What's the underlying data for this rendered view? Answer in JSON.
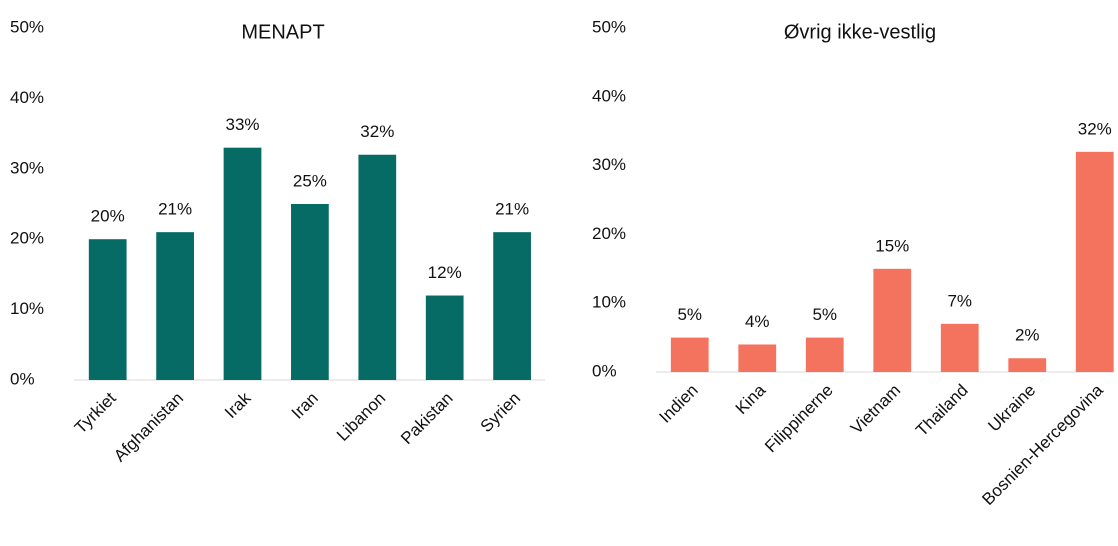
{
  "chart_data": [
    {
      "type": "bar",
      "title": "MENAPT",
      "categories": [
        "Tyrkiet",
        "Afghanistan",
        "Irak",
        "Iran",
        "Libanon",
        "Pakistan",
        "Syrien"
      ],
      "values": [
        20,
        21,
        33,
        25,
        32,
        12,
        21
      ],
      "value_labels": [
        "20%",
        "21%",
        "33%",
        "25%",
        "32%",
        "12%",
        "21%"
      ],
      "color": "#076b65",
      "ylim": [
        0,
        50
      ],
      "yticks": [
        {
          "value": 0,
          "label": "0%"
        },
        {
          "value": 10,
          "label": "10%"
        },
        {
          "value": 20,
          "label": "20%"
        },
        {
          "value": 30,
          "label": "30%"
        },
        {
          "value": 40,
          "label": "40%"
        },
        {
          "value": 50,
          "label": "50%"
        }
      ],
      "grid": false
    },
    {
      "type": "bar",
      "title": "Øvrig ikke-vestlig",
      "categories": [
        "Indien",
        "Kina",
        "Filippinerne",
        "Vietnam",
        "Thailand",
        "Ukraine",
        "Bosnien-Hercegovina"
      ],
      "values": [
        5,
        4,
        5,
        15,
        7,
        2,
        32
      ],
      "value_labels": [
        "5%",
        "4%",
        "5%",
        "15%",
        "7%",
        "2%",
        "32%"
      ],
      "color": "#f4735f",
      "ylim": [
        0,
        50
      ],
      "yticks": [
        {
          "value": 0,
          "label": "0%"
        },
        {
          "value": 10,
          "label": "10%"
        },
        {
          "value": 20,
          "label": "20%"
        },
        {
          "value": 30,
          "label": "30%"
        },
        {
          "value": 40,
          "label": "40%"
        },
        {
          "value": 50,
          "label": "50%"
        }
      ],
      "grid": false
    }
  ]
}
